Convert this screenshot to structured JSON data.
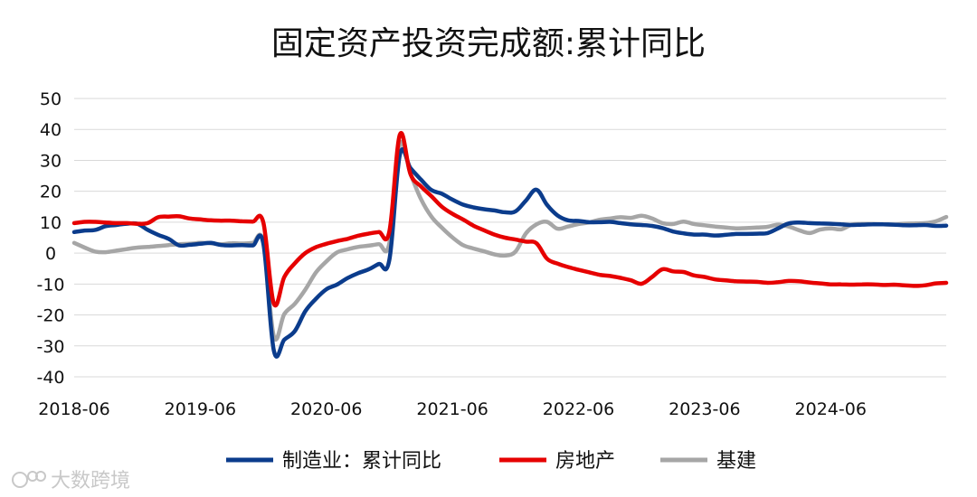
{
  "watermark": "大数跨境",
  "chart_data": {
    "type": "line",
    "title": "固定资产投资完成额:累计同比",
    "xlabel": "",
    "ylabel": "",
    "ylim": [
      -40,
      50
    ],
    "yticks": [
      -40,
      -30,
      -20,
      -10,
      0,
      10,
      20,
      30,
      40,
      50
    ],
    "x_tick_labels": [
      "2018-06",
      "2019-06",
      "2020-06",
      "2021-06",
      "2022-06",
      "2023-06",
      "2024-06"
    ],
    "grid": "horizontal",
    "legend_position": "bottom",
    "x": [
      "2018-06",
      "2018-07",
      "2018-08",
      "2018-09",
      "2018-10",
      "2018-11",
      "2018-12",
      "2019-01",
      "2019-02",
      "2019-03",
      "2019-04",
      "2019-05",
      "2019-06",
      "2019-07",
      "2019-08",
      "2019-09",
      "2019-10",
      "2019-11",
      "2019-12",
      "2020-01",
      "2020-02",
      "2020-03",
      "2020-04",
      "2020-05",
      "2020-06",
      "2020-07",
      "2020-08",
      "2020-09",
      "2020-10",
      "2020-11",
      "2020-12",
      "2021-01",
      "2021-02",
      "2021-03",
      "2021-04",
      "2021-05",
      "2021-06",
      "2021-07",
      "2021-08",
      "2021-09",
      "2021-10",
      "2021-11",
      "2021-12",
      "2022-01",
      "2022-02",
      "2022-03",
      "2022-04",
      "2022-05",
      "2022-06",
      "2022-07",
      "2022-08",
      "2022-09",
      "2022-10",
      "2022-11",
      "2022-12",
      "2023-01",
      "2023-02",
      "2023-03",
      "2023-04",
      "2023-05",
      "2023-06",
      "2023-07",
      "2023-08",
      "2023-09",
      "2023-10",
      "2023-11",
      "2023-12",
      "2024-01",
      "2024-02",
      "2024-03",
      "2024-04",
      "2024-05",
      "2024-06",
      "2024-07",
      "2024-08",
      "2024-09",
      "2024-10",
      "2024-11",
      "2024-12",
      "2025-01",
      "2025-02",
      "2025-03",
      "2025-04",
      "2025-05"
    ],
    "series": [
      {
        "name": "制造业：累计同比",
        "color": "#0b3c8c",
        "values": [
          6.8,
          7.3,
          7.5,
          8.7,
          9.1,
          9.5,
          9.5,
          7.5,
          5.9,
          4.6,
          2.5,
          2.7,
          3.0,
          3.3,
          2.6,
          2.5,
          2.6,
          2.5,
          3.1,
          -31.5,
          -28,
          -25.2,
          -18.8,
          -14.8,
          -11.7,
          -10.2,
          -8.1,
          -6.5,
          -5.3,
          -3.5,
          -2.2,
          31.8,
          27.5,
          23.8,
          20.4,
          19.2,
          17.3,
          15.7,
          14.8,
          14.2,
          13.8,
          13.2,
          13.5,
          17.0,
          20.5,
          15.6,
          12.2,
          10.6,
          10.4,
          10.0,
          10.0,
          10.1,
          9.7,
          9.3,
          9.1,
          8.8,
          8.1,
          7.0,
          6.4,
          6.0,
          6.0,
          5.7,
          5.9,
          6.2,
          6.2,
          6.3,
          6.5,
          8.0,
          9.6,
          9.9,
          9.7,
          9.6,
          9.5,
          9.3,
          9.1,
          9.2,
          9.3,
          9.3,
          9.2,
          9.0,
          9.0,
          9.1,
          8.8,
          8.9
        ]
      },
      {
        "name": "房地产",
        "color": "#e60000",
        "values": [
          9.7,
          10.1,
          10.1,
          9.9,
          9.7,
          9.7,
          9.5,
          9.7,
          11.6,
          11.8,
          11.9,
          11.2,
          10.9,
          10.6,
          10.5,
          10.5,
          10.3,
          10.2,
          9.9,
          -16.3,
          -7.7,
          -3.3,
          0.0,
          1.9,
          3.0,
          3.9,
          4.6,
          5.6,
          6.3,
          6.8,
          7.0,
          38.3,
          25.6,
          21.6,
          18.4,
          15.0,
          12.7,
          10.9,
          8.9,
          7.4,
          6.0,
          5.0,
          4.4,
          3.7,
          3.2,
          -1.8,
          -3.4,
          -4.5,
          -5.4,
          -6.2,
          -7.0,
          -7.4,
          -8.0,
          -8.8,
          -9.9,
          -7.7,
          -5.2,
          -5.9,
          -6.1,
          -7.2,
          -7.7,
          -8.5,
          -8.8,
          -9.1,
          -9.2,
          -9.3,
          -9.6,
          -9.4,
          -9.0,
          -9.1,
          -9.5,
          -9.8,
          -10.1,
          -10.1,
          -10.2,
          -10.1,
          -10.1,
          -10.3,
          -10.2,
          -10.4,
          -10.6,
          -10.4,
          -9.8,
          -9.6
        ]
      },
      {
        "name": "基建",
        "color": "#a6a6a6",
        "values": [
          3.3,
          1.8,
          0.5,
          0.3,
          0.8,
          1.3,
          1.8,
          2.0,
          2.3,
          2.6,
          2.9,
          3.0,
          3.3,
          3.2,
          2.9,
          3.2,
          3.1,
          3.3,
          3.6,
          -26.9,
          -19.7,
          -16.4,
          -11.8,
          -6.3,
          -2.7,
          0.2,
          1.2,
          2.0,
          2.4,
          2.9,
          3.2,
          35.0,
          25.8,
          17.5,
          11.8,
          8.2,
          5.1,
          2.6,
          1.5,
          0.6,
          -0.4,
          -0.8,
          0.5,
          6.4,
          9.3,
          10.1,
          7.9,
          8.6,
          9.4,
          9.9,
          10.8,
          11.2,
          11.6,
          11.4,
          12.1,
          11.2,
          9.7,
          9.4,
          10.2,
          9.4,
          9.0,
          8.6,
          8.3,
          8.0,
          8.1,
          8.3,
          8.5,
          9.2,
          8.6,
          7.4,
          6.5,
          7.6,
          8.0,
          7.7,
          9.2,
          9.4,
          9.4,
          9.3,
          9.2,
          9.5,
          9.6,
          9.7,
          10.3,
          11.7
        ]
      }
    ]
  }
}
